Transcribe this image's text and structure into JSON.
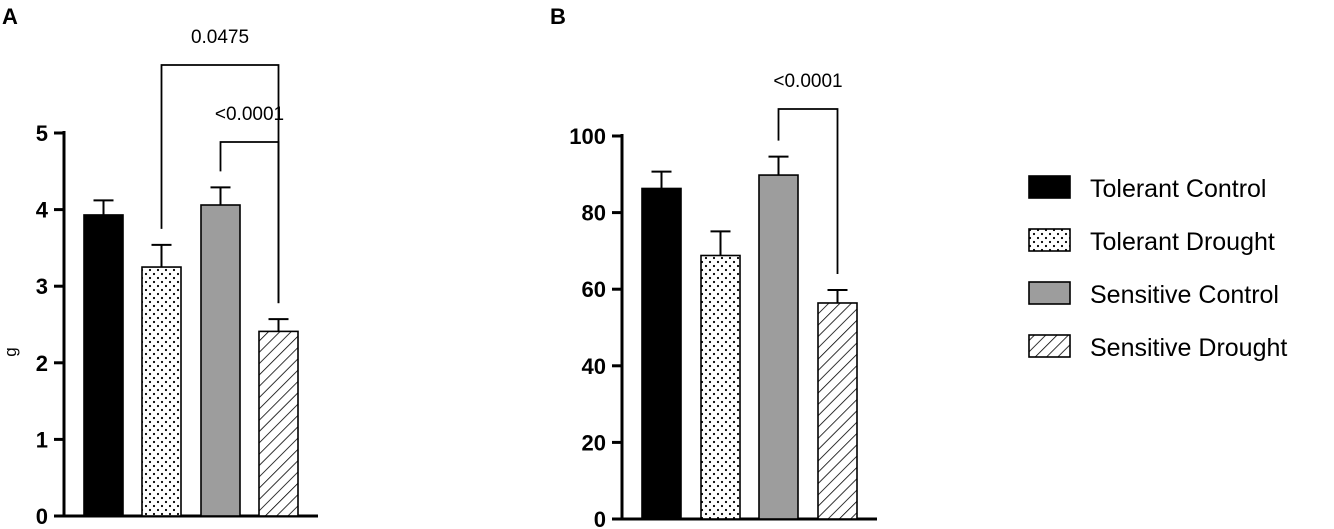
{
  "chart_data": [
    {
      "type": "bar",
      "panel": "A",
      "ylabel": "g",
      "ylim": [
        0,
        5
      ],
      "yticks": [
        "0",
        "1",
        "2",
        "3",
        "4",
        "5"
      ],
      "categories": [
        "Tolerant Control",
        "Tolerant Drought",
        "Sensitive Control",
        "Sensitive Drought"
      ],
      "values": [
        3.93,
        3.25,
        4.06,
        2.41
      ],
      "errors": [
        0.19,
        0.29,
        0.23,
        0.16
      ],
      "comparisons": [
        {
          "from": 1,
          "to": 3,
          "label": "0.0475"
        },
        {
          "from": 2,
          "to": 3,
          "label": "<0.0001"
        }
      ]
    },
    {
      "type": "bar",
      "panel": "B",
      "ylabel": "",
      "ylim": [
        0,
        100
      ],
      "yticks": [
        "0",
        "20",
        "40",
        "60",
        "80",
        "100"
      ],
      "categories": [
        "Tolerant Control",
        "Tolerant Drought",
        "Sensitive Control",
        "Sensitive Drought"
      ],
      "values": [
        86.3,
        68.8,
        89.8,
        56.4
      ],
      "errors": [
        4.4,
        6.3,
        4.8,
        3.4
      ],
      "comparisons": [
        {
          "from": 2,
          "to": 3,
          "label": "<0.0001"
        }
      ]
    }
  ],
  "legend": {
    "placement": "right",
    "items": [
      {
        "label": "Tolerant Control",
        "fill": "black"
      },
      {
        "label": "Tolerant Drought",
        "fill": "dots"
      },
      {
        "label": "Sensitive Control",
        "fill": "gray"
      },
      {
        "label": "Sensitive Drought",
        "fill": "hatch"
      }
    ]
  },
  "colors": {
    "black": "#000000",
    "gray": "#9d9d9d",
    "axis": "#000000"
  }
}
